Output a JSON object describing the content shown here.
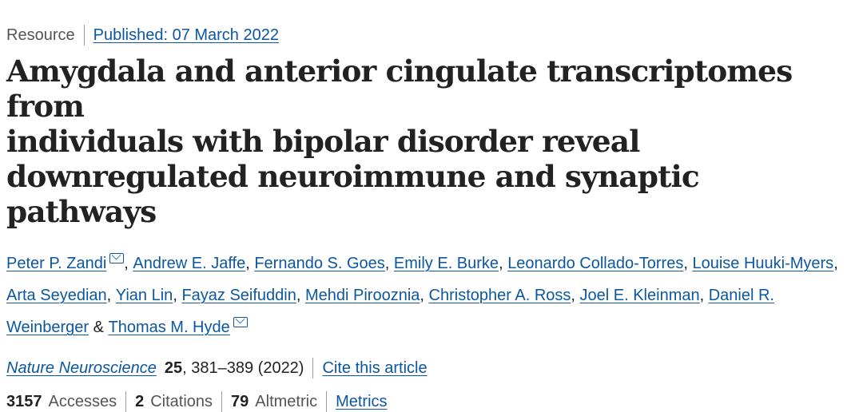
{
  "header": {
    "article_type": "Resource",
    "published": "Published: 07 March 2022"
  },
  "title_lines": [
    "Amygdala and anterior cingulate transcriptomes from",
    "individuals with bipolar disorder reveal",
    "downregulated neuroimmune and synaptic pathways"
  ],
  "authors": [
    {
      "name": "Peter P. Zandi",
      "suffix": "",
      "connector": ", "
    },
    {
      "name": "Andrew E. Jaffe",
      "connector": ", "
    },
    {
      "name": "Fernando S. Goes",
      "connector": ", "
    },
    {
      "name": "Emily E. Burke",
      "connector": ", "
    },
    {
      "name": "Leonardo Collado-Torres",
      "connector": ", "
    },
    {
      "name": "Louise Huuki-Myers",
      "connector": ", "
    },
    {
      "name": "Arta Seyedian",
      "connector": ", "
    },
    {
      "name": "Yian Lin",
      "connector": ", "
    },
    {
      "name": "Fayaz Seifuddin",
      "connector": ", "
    },
    {
      "name": "Mehdi Pirooznia",
      "connector": ", "
    },
    {
      "name": "Christopher A. Ross",
      "connector": ", "
    },
    {
      "name": "Joel E. Kleinman",
      "connector": ", "
    },
    {
      "name": "Daniel R. Weinberger",
      "connector": " & "
    },
    {
      "name": "Thomas M. Hyde",
      "connector": ""
    }
  ],
  "citation": {
    "journal": "Nature Neuroscience",
    "volume": "25",
    "pages_year": ", 381–389 (2022)",
    "cite_link": "Cite this article"
  },
  "metrics": {
    "accesses_count": "3157",
    "accesses_label": "Accesses",
    "citations_count": "2",
    "citations_label": "Citations",
    "altmetric_count": "79",
    "altmetric_label": "Altmetric",
    "metrics_link": "Metrics"
  },
  "icons": {
    "corresponding_author": "mail-icon"
  },
  "colors": {
    "link": "#0c57a1",
    "text": "#222222",
    "muted": "#555555"
  }
}
